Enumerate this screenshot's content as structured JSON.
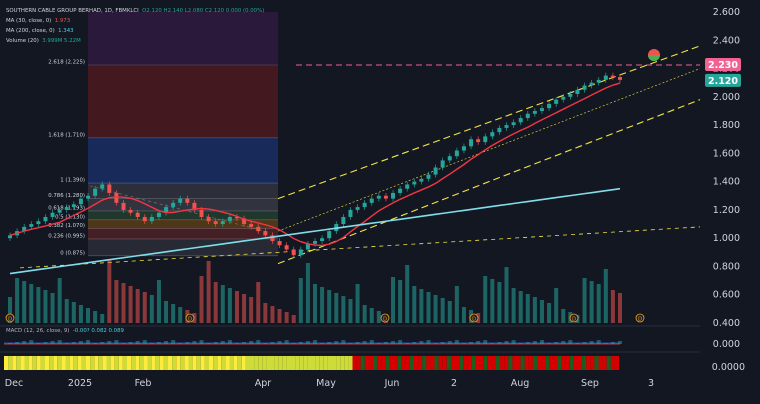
{
  "legend": {
    "title": "SOUTHERN CABLE GROUP BERHAD, 1D, FBMKLCI",
    "ohlc": "O2.120  H2.140  L2.080  C2.120  0.000 (0.00%)",
    "ma30_label": "MA (30, close, 0)",
    "ma30_value": "1.973",
    "ma200_label": "MA (200, close, 0)",
    "ma200_value": "1.343",
    "volume_label": "Volume (20)",
    "volume_value": "3.999M  5.22M"
  },
  "macd_legend": {
    "label": "MACD (12, 26, close, 9)",
    "values": "-0.00?  0.082  0.089"
  },
  "price_badges": {
    "fib_level": "2.230",
    "last_price": "2.120"
  },
  "colors": {
    "background": "#131722",
    "up": "#26a69a",
    "down": "#ef5350",
    "ma30": "#f23645",
    "ma200": "#80deea",
    "trend": "#f5e642",
    "fib_line": "#f06292"
  },
  "chart_data": {
    "type": "candlestick",
    "y_axis": {
      "min": 0.4,
      "max": 2.6,
      "ticks": [
        "2.600",
        "2.400",
        "2.200",
        "2.000",
        "1.800",
        "1.600",
        "1.400",
        "1.200",
        "1.000",
        "0.800",
        "0.600",
        "0.400"
      ]
    },
    "x_axis": {
      "labels": [
        "Dec",
        "2025",
        "Feb",
        "Apr",
        "May",
        "Jun",
        "2",
        "Aug",
        "Sep",
        "3"
      ]
    },
    "macd_axis": {
      "ticks": [
        "0.000"
      ]
    },
    "lower_axis": {
      "ticks": [
        "0.0000"
      ]
    },
    "fib_levels": [
      {
        "label": "2.618 (2.225)",
        "value": 2.225
      },
      {
        "label": "1.618 (1.710)",
        "value": 1.71
      },
      {
        "label": "1 (1.390)",
        "value": 1.39
      },
      {
        "label": "0.786 (1.280)",
        "value": 1.28
      },
      {
        "label": "0.618 (1.193)",
        "value": 1.193
      },
      {
        "label": "0.5 (1.130)",
        "value": 1.13
      },
      {
        "label": "0.382 (1.070)",
        "value": 1.07
      },
      {
        "label": "0.236 (0.995)",
        "value": 0.995
      },
      {
        "label": "0 (0.875)",
        "value": 0.875
      }
    ],
    "close_series": [
      1.02,
      1.05,
      1.08,
      1.1,
      1.12,
      1.15,
      1.18,
      1.2,
      1.22,
      1.24,
      1.28,
      1.3,
      1.35,
      1.38,
      1.32,
      1.25,
      1.2,
      1.18,
      1.15,
      1.12,
      1.15,
      1.18,
      1.22,
      1.25,
      1.28,
      1.25,
      1.2,
      1.15,
      1.12,
      1.1,
      1.12,
      1.15,
      1.14,
      1.1,
      1.08,
      1.05,
      1.02,
      0.98,
      0.95,
      0.92,
      0.88,
      0.92,
      0.96,
      0.98,
      1.0,
      1.05,
      1.1,
      1.15,
      1.2,
      1.22,
      1.25,
      1.28,
      1.3,
      1.28,
      1.32,
      1.35,
      1.38,
      1.4,
      1.42,
      1.45,
      1.5,
      1.55,
      1.58,
      1.62,
      1.65,
      1.7,
      1.68,
      1.72,
      1.75,
      1.78,
      1.8,
      1.82,
      1.85,
      1.88,
      1.9,
      1.92,
      1.95,
      1.98,
      2.0,
      2.02,
      2.05,
      2.08,
      2.1,
      2.12,
      2.15,
      2.14,
      2.12
    ],
    "markers": [
      "watermelon",
      "D",
      "D",
      "D",
      "D",
      "D"
    ],
    "grid": false,
    "legend_position": "top-left"
  }
}
